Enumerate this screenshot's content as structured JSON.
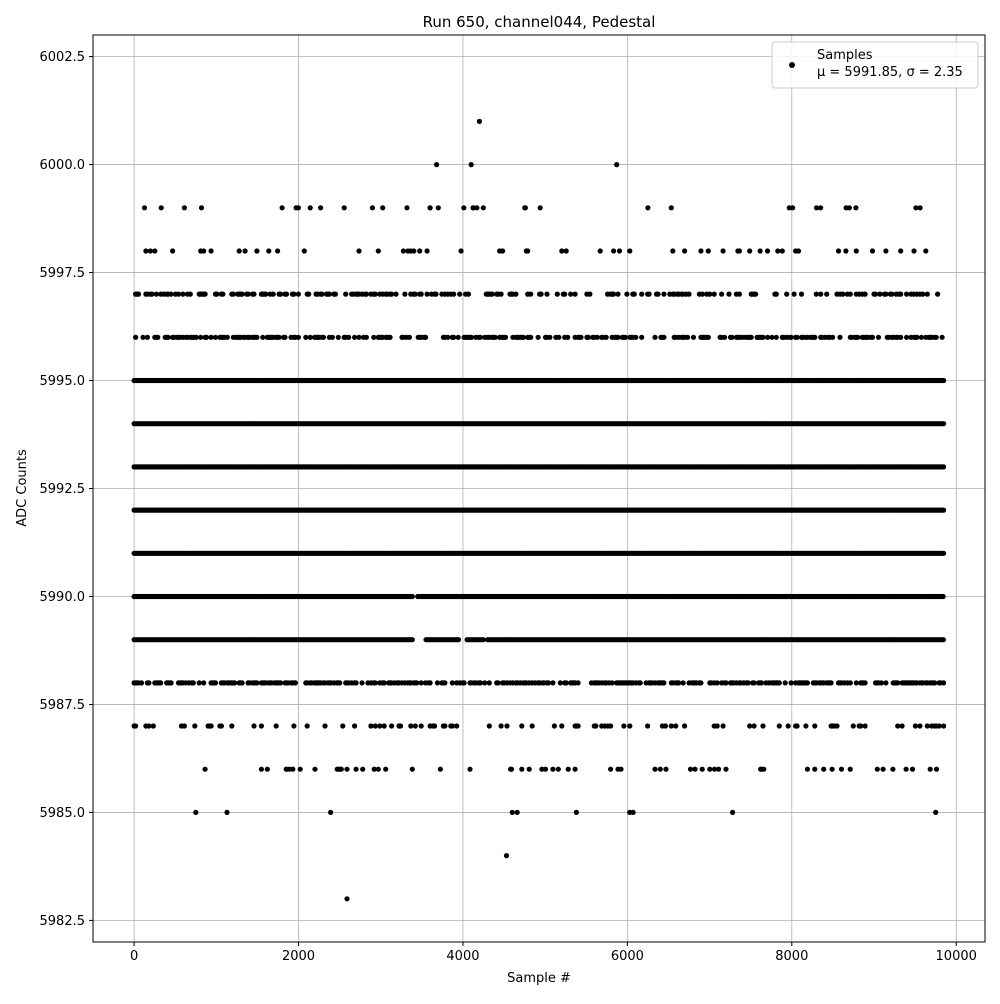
{
  "chart_data": {
    "type": "scatter",
    "title": "Run 650, channel044, Pedestal",
    "xlabel": "Sample #",
    "ylabel": "ADC Counts",
    "xlim": [
      -500,
      10350
    ],
    "ylim": [
      5982.0,
      6003.0
    ],
    "x_ticks": [
      0,
      2000,
      4000,
      6000,
      8000,
      10000
    ],
    "x_tick_labels": [
      "0",
      "2000",
      "4000",
      "6000",
      "8000",
      "10000"
    ],
    "y_ticks": [
      5982.5,
      5985.0,
      5987.5,
      5990.0,
      5992.5,
      5995.0,
      5997.5,
      6000.0,
      6002.5
    ],
    "y_tick_labels": [
      "5982.5",
      "5985.0",
      "5987.5",
      "5990.0",
      "5992.5",
      "5995.0",
      "5997.5",
      "6000.0",
      "6002.5"
    ],
    "grid": true,
    "legend": {
      "placement": "top-right",
      "entries": [
        {
          "label": "Samples",
          "stats": "μ = 5991.85, σ = 2.35",
          "marker_color": "#000000"
        }
      ]
    },
    "series": [
      {
        "name": "Samples",
        "color": "#000000",
        "x_range": [
          0,
          9850
        ],
        "dense_levels": [
          {
            "y": 5989,
            "ranges": [
              [
                0,
                3400
              ],
              [
                3550,
                3950
              ],
              [
                4050,
                4250
              ],
              [
                4300,
                9850
              ]
            ]
          },
          {
            "y": 5990,
            "ranges": [
              [
                0,
                3400
              ],
              [
                3450,
                9850
              ]
            ]
          },
          {
            "y": 5991,
            "ranges": [
              [
                0,
                9850
              ]
            ]
          },
          {
            "y": 5992,
            "ranges": [
              [
                0,
                9850
              ]
            ]
          },
          {
            "y": 5993,
            "ranges": [
              [
                0,
                9850
              ]
            ]
          },
          {
            "y": 5994,
            "ranges": [
              [
                0,
                9850
              ]
            ]
          },
          {
            "y": 5995,
            "ranges": [
              [
                0,
                9850
              ]
            ]
          }
        ],
        "sparse_levels": [
          {
            "y": 5988,
            "density": 0.55
          },
          {
            "y": 5996,
            "density": 0.5
          },
          {
            "y": 5997,
            "density": 0.33
          },
          {
            "y": 5987,
            "density": 0.16
          },
          {
            "y": 5998,
            "density": 0.1
          },
          {
            "y": 5986,
            "density": 0.05
          },
          {
            "y": 5999,
            "density": 0.03
          }
        ],
        "points": [
          {
            "x": 750,
            "y": 5985
          },
          {
            "x": 1130,
            "y": 5985
          },
          {
            "x": 2390,
            "y": 5985
          },
          {
            "x": 4600,
            "y": 5985
          },
          {
            "x": 4660,
            "y": 5985
          },
          {
            "x": 5380,
            "y": 5985
          },
          {
            "x": 6030,
            "y": 5985
          },
          {
            "x": 6070,
            "y": 5985
          },
          {
            "x": 7280,
            "y": 5985
          },
          {
            "x": 9750,
            "y": 5985
          },
          {
            "x": 4530,
            "y": 5984
          },
          {
            "x": 2590,
            "y": 5983
          },
          {
            "x": 3680,
            "y": 6000
          },
          {
            "x": 4100,
            "y": 6000
          },
          {
            "x": 5870,
            "y": 6000
          },
          {
            "x": 4200,
            "y": 6001
          },
          {
            "x": 330,
            "y": 5999
          },
          {
            "x": 820,
            "y": 5999
          },
          {
            "x": 1970,
            "y": 5999
          },
          {
            "x": 3320,
            "y": 5999
          },
          {
            "x": 3600,
            "y": 5999
          },
          {
            "x": 3700,
            "y": 5999
          },
          {
            "x": 4010,
            "y": 5999
          },
          {
            "x": 4130,
            "y": 5999
          },
          {
            "x": 4170,
            "y": 5999
          },
          {
            "x": 4760,
            "y": 5999
          },
          {
            "x": 4940,
            "y": 5999
          },
          {
            "x": 6250,
            "y": 5999
          },
          {
            "x": 7970,
            "y": 5999
          },
          {
            "x": 8010,
            "y": 5999
          },
          {
            "x": 8300,
            "y": 5999
          },
          {
            "x": 8350,
            "y": 5999
          },
          {
            "x": 8660,
            "y": 5999
          },
          {
            "x": 8700,
            "y": 5999
          },
          {
            "x": 8780,
            "y": 5999
          },
          {
            "x": 9510,
            "y": 5999
          },
          {
            "x": 9560,
            "y": 5999
          },
          {
            "x": 1620,
            "y": 5986
          },
          {
            "x": 1850,
            "y": 5986
          },
          {
            "x": 1930,
            "y": 5986
          },
          {
            "x": 2020,
            "y": 5986
          },
          {
            "x": 2200,
            "y": 5986
          },
          {
            "x": 2470,
            "y": 5986
          },
          {
            "x": 2520,
            "y": 5986
          },
          {
            "x": 2590,
            "y": 5986
          },
          {
            "x": 2700,
            "y": 5986
          },
          {
            "x": 2780,
            "y": 5986
          },
          {
            "x": 2920,
            "y": 5986
          },
          {
            "x": 2970,
            "y": 5986
          },
          {
            "x": 4580,
            "y": 5986
          },
          {
            "x": 4960,
            "y": 5986
          },
          {
            "x": 5160,
            "y": 5986
          },
          {
            "x": 5280,
            "y": 5986
          },
          {
            "x": 6400,
            "y": 5986
          },
          {
            "x": 6470,
            "y": 5986
          },
          {
            "x": 6910,
            "y": 5986
          },
          {
            "x": 7060,
            "y": 5986
          },
          {
            "x": 7200,
            "y": 5986
          },
          {
            "x": 7620,
            "y": 5986
          },
          {
            "x": 7660,
            "y": 5986
          },
          {
            "x": 8280,
            "y": 5986
          },
          {
            "x": 8490,
            "y": 5986
          },
          {
            "x": 8710,
            "y": 5986
          },
          {
            "x": 9040,
            "y": 5986
          },
          {
            "x": 9110,
            "y": 5986
          },
          {
            "x": 9230,
            "y": 5986
          },
          {
            "x": 9390,
            "y": 5986
          },
          {
            "x": 9760,
            "y": 5986
          }
        ]
      }
    ]
  }
}
